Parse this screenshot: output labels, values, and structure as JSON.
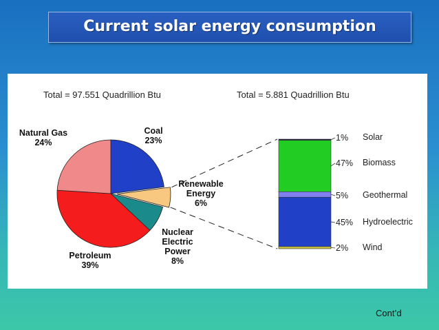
{
  "slide": {
    "title": "Current solar energy consumption",
    "footer_note": "Cont’d"
  },
  "colors": {
    "natural_gas": "#f08a8a",
    "coal": "#2040c8",
    "renewable": "#f8c880",
    "nuclear": "#1a8a8a",
    "petroleum": "#f41c1c",
    "solar": "#1a1a40",
    "biomass": "#22cc22",
    "geothermal": "#8080f0",
    "hydroelectric": "#2040c8",
    "wind": "#c8c040"
  },
  "chart_data": [
    {
      "type": "pie",
      "title": "Total = 97.551 Quadrillion Btu",
      "slices": [
        {
          "label_lines": [
            "Coal",
            "23%"
          ],
          "value": 23,
          "color_key": "coal"
        },
        {
          "label_lines": [
            "Renewable",
            "Energy",
            "6%"
          ],
          "value": 6,
          "color_key": "renewable",
          "exploded": true
        },
        {
          "label_lines": [
            "Nuclear",
            "Electric",
            "Power",
            "8%"
          ],
          "value": 8,
          "color_key": "nuclear"
        },
        {
          "label_lines": [
            "Petroleum",
            "39%"
          ],
          "value": 39,
          "color_key": "petroleum"
        },
        {
          "label_lines": [
            "Natural Gas",
            "24%"
          ],
          "value": 24,
          "color_key": "natural_gas"
        }
      ]
    },
    {
      "type": "bar",
      "stacked": true,
      "title": "Total = 5.881 Quadrillion Btu",
      "segments": [
        {
          "name": "Solar",
          "percent_label": "1%",
          "value": 1,
          "color_key": "solar"
        },
        {
          "name": "Biomass",
          "percent_label": "47%",
          "value": 47,
          "color_key": "biomass"
        },
        {
          "name": "Geothermal",
          "percent_label": "5%",
          "value": 5,
          "color_key": "geothermal"
        },
        {
          "name": "Hydroelectric",
          "percent_label": "45%",
          "value": 45,
          "color_key": "hydroelectric"
        },
        {
          "name": "Wind",
          "percent_label": "2%",
          "value": 2,
          "color_key": "wind"
        }
      ]
    }
  ]
}
